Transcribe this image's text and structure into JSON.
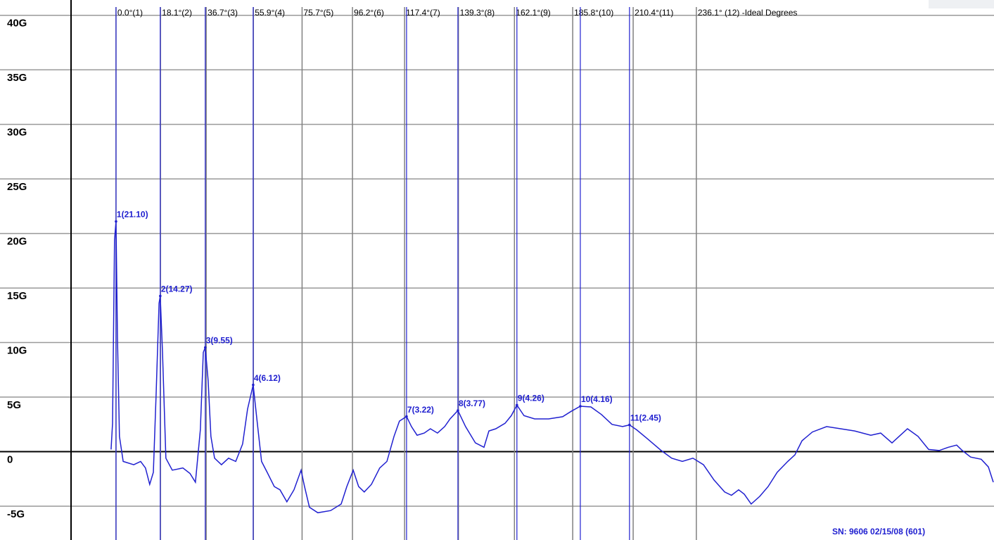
{
  "chart_data": {
    "type": "line",
    "xlim": [
      -47.2,
      357.2
    ],
    "ylim": [
      -8.1,
      41.4
    ],
    "yticks": [
      {
        "value": 40,
        "label": "40G"
      },
      {
        "value": 35,
        "label": "35G"
      },
      {
        "value": 30,
        "label": "30G"
      },
      {
        "value": 25,
        "label": "25G"
      },
      {
        "value": 20,
        "label": "20G"
      },
      {
        "value": 15,
        "label": "15G"
      },
      {
        "value": 10,
        "label": "10G"
      },
      {
        "value": 5,
        "label": "5G"
      },
      0,
      {
        "value": -5,
        "label": "-5G"
      }
    ],
    "grid": true,
    "ideal_lines": [
      {
        "value": 0.0,
        "label": "0.0°(1)"
      },
      {
        "value": 18.1,
        "label": "18.1°(2)"
      },
      {
        "value": 36.7,
        "label": "36.7°(3)"
      },
      {
        "value": 55.9,
        "label": "55.9°(4)"
      },
      {
        "value": 75.7,
        "label": "75.7°(5)"
      },
      {
        "value": 96.2,
        "label": "96.2°(6)"
      },
      {
        "value": 117.4,
        "label": "117.4°(7)"
      },
      {
        "value": 139.3,
        "label": "139.3°(8)"
      },
      {
        "value": 162.1,
        "label": "162.1°(9)"
      },
      {
        "value": 185.8,
        "label": "185.8°(10)"
      },
      {
        "value": 210.4,
        "label": "210.4°(11)"
      },
      {
        "value": 236.1,
        "label": "236.1° (12) -Ideal Degrees"
      }
    ],
    "series": [
      {
        "color": "#2020d0",
        "x": [
          -2.0,
          -1.4,
          -0.6,
          0.0,
          0.6,
          1.4,
          2.9,
          7.2,
          10.0,
          12.0,
          13.7,
          15.2,
          16.3,
          17.5,
          18.0,
          18.9,
          20.3,
          22.9,
          27.2,
          30.1,
          32.3,
          34.3,
          35.5,
          36.3,
          37.5,
          38.6,
          40.1,
          42.9,
          45.8,
          48.7,
          51.5,
          53.5,
          55.8,
          57.5,
          59.2,
          61.5,
          64.4,
          66.7,
          69.5,
          72.4,
          75.3,
          76.7,
          78.7,
          82.1,
          87.3,
          91.6,
          93.9,
          96.5,
          98.7,
          101.0,
          103.9,
          107.3,
          110.2,
          113.1,
          115.3,
          118.2,
          120.2,
          122.5,
          125.4,
          127.9,
          130.8,
          133.7,
          135.9,
          139.1,
          142.2,
          146.2,
          149.7,
          151.7,
          154.5,
          158.3,
          160.8,
          163.1,
          166.0,
          170.3,
          176.0,
          181.7,
          185.2,
          188.9,
          193.2,
          197.5,
          201.8,
          206.1,
          208.9,
          211.8,
          216.1,
          221.8,
          226.1,
          230.4,
          234.7,
          239.0,
          243.3,
          247.6,
          250.4,
          253.3,
          255.6,
          258.4,
          261.9,
          265.3,
          269.0,
          273.3,
          276.2,
          279.1,
          283.3,
          289.1,
          294.8,
          300.5,
          307.1,
          311.1,
          315.7,
          319.1,
          322.0,
          326.3,
          330.6,
          334.9,
          338.6,
          342.0,
          344.3,
          347.7,
          352.0,
          354.9,
          356.9
        ],
        "values": [
          0.2,
          2.6,
          19.4,
          21.1,
          10.4,
          1.4,
          -0.9,
          -1.2,
          -0.9,
          -1.5,
          -3.0,
          -1.9,
          5.2,
          13.6,
          14.27,
          9.1,
          -0.6,
          -1.7,
          -1.5,
          -2.0,
          -2.8,
          2.0,
          9.1,
          9.55,
          6.5,
          1.4,
          -0.6,
          -1.2,
          -0.6,
          -0.9,
          0.7,
          3.9,
          6.12,
          2.6,
          -0.9,
          -1.9,
          -3.2,
          -3.5,
          -4.6,
          -3.5,
          -1.7,
          -3.2,
          -5.1,
          -5.6,
          -5.4,
          -4.8,
          -3.2,
          -1.7,
          -3.2,
          -3.7,
          -3.0,
          -1.5,
          -0.9,
          1.4,
          2.8,
          3.22,
          2.3,
          1.5,
          1.7,
          2.1,
          1.7,
          2.3,
          3.0,
          3.77,
          2.3,
          0.8,
          0.4,
          1.9,
          2.1,
          2.6,
          3.3,
          4.26,
          3.3,
          3.0,
          3.0,
          3.2,
          3.7,
          4.16,
          4.1,
          3.4,
          2.5,
          2.3,
          2.45,
          2.0,
          1.2,
          0.1,
          -0.6,
          -0.9,
          -0.6,
          -1.2,
          -2.6,
          -3.7,
          -4.0,
          -3.5,
          -3.9,
          -4.8,
          -4.1,
          -3.2,
          -1.9,
          -0.9,
          -0.3,
          1.0,
          1.8,
          2.3,
          2.1,
          1.9,
          1.5,
          1.7,
          0.8,
          1.5,
          2.1,
          1.4,
          0.2,
          0.1,
          0.4,
          0.6,
          0.1,
          -0.5,
          -0.7,
          -1.4,
          -2.8
        ]
      }
    ],
    "peaks": {
      "color": "#2020d0",
      "x": [
        0.0,
        18.0,
        36.3,
        55.8,
        118.2,
        139.1,
        163.1,
        188.9,
        208.9
      ],
      "values": [
        21.1,
        14.27,
        9.55,
        6.12,
        3.22,
        3.77,
        4.26,
        4.16,
        2.45
      ],
      "value_labels": [
        "1(21.10)",
        "2(14.27)",
        "3(9.55)",
        "4(6.12)",
        "7(3.22)",
        "8(3.77)",
        "9(4.26)",
        "10(4.16)",
        "11(2.45)"
      ]
    },
    "annotation": "SN: 9606 02/15/08 (601)"
  }
}
